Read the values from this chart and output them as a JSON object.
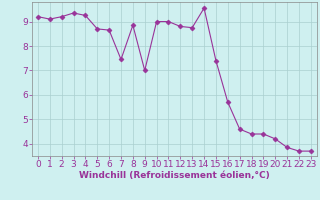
{
  "x": [
    0,
    1,
    2,
    3,
    4,
    5,
    6,
    7,
    8,
    9,
    10,
    11,
    12,
    13,
    14,
    15,
    16,
    17,
    18,
    19,
    20,
    21,
    22,
    23
  ],
  "y": [
    9.2,
    9.1,
    9.2,
    9.35,
    9.25,
    8.7,
    8.65,
    7.45,
    8.85,
    7.0,
    9.0,
    9.0,
    8.8,
    8.75,
    9.55,
    7.4,
    5.7,
    4.6,
    4.4,
    4.4,
    4.2,
    3.85,
    3.7,
    3.7
  ],
  "line_color": "#993399",
  "marker": "D",
  "marker_size": 2.5,
  "bg_color": "#cff0f0",
  "grid_color": "#aacfcf",
  "xlabel": "Windchill (Refroidissement éolien,°C)",
  "xlabel_color": "#993399",
  "tick_color": "#993399",
  "xlim": [
    -0.5,
    23.5
  ],
  "ylim": [
    3.5,
    9.8
  ],
  "yticks": [
    4,
    5,
    6,
    7,
    8,
    9
  ],
  "xticks": [
    0,
    1,
    2,
    3,
    4,
    5,
    6,
    7,
    8,
    9,
    10,
    11,
    12,
    13,
    14,
    15,
    16,
    17,
    18,
    19,
    20,
    21,
    22,
    23
  ],
  "spine_color": "#888888",
  "tick_fontsize": 6.5,
  "xlabel_fontsize": 6.5
}
